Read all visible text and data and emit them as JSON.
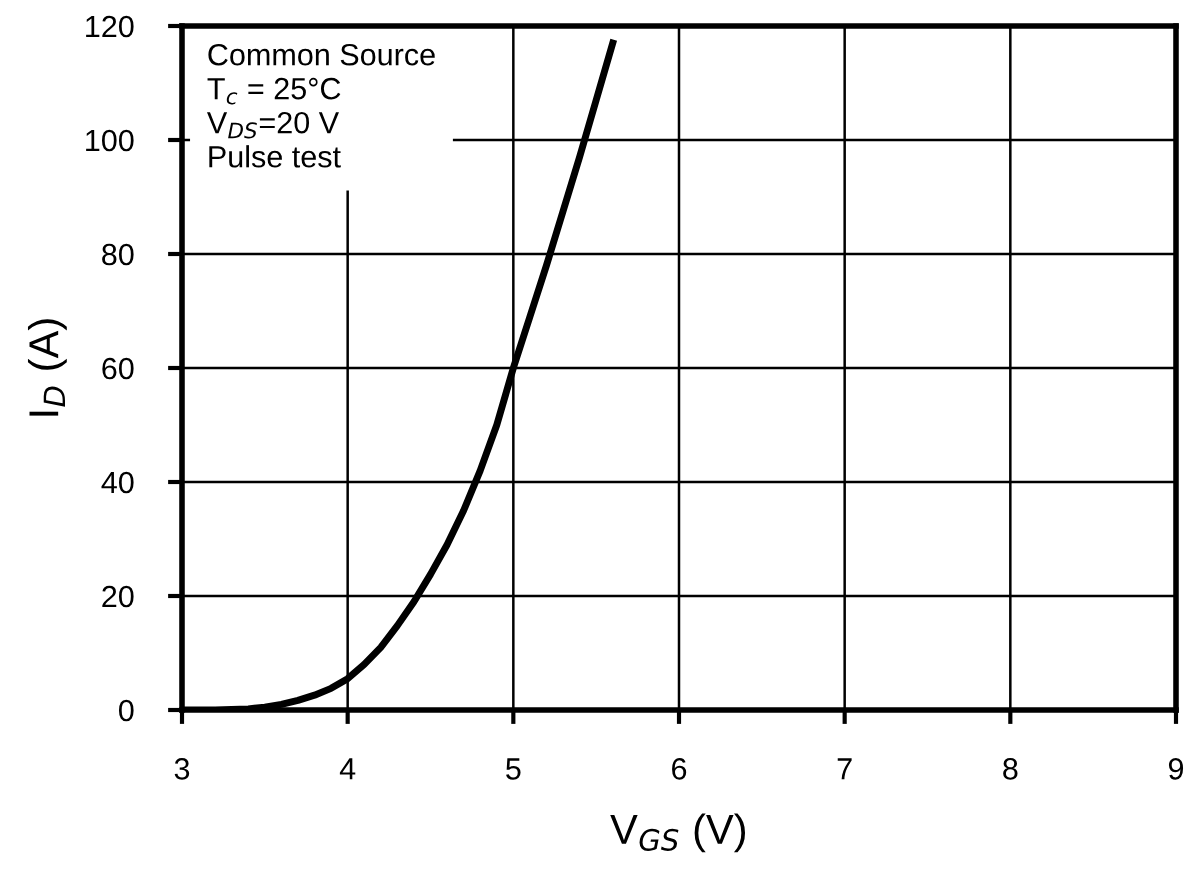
{
  "chart_data": {
    "type": "line",
    "xlabel": "V$_{GS}$ (V)",
    "ylabel": "I$_{D}$ (A)",
    "x": [
      3,
      3.2,
      3.4,
      3.5,
      3.6,
      3.7,
      3.8,
      3.9,
      4,
      4.1,
      4.2,
      4.3,
      4.4,
      4.5,
      4.6,
      4.7,
      4.8,
      4.9,
      5,
      5.1,
      5.2,
      5.3,
      5.4,
      5.5,
      5.6
    ],
    "series": [
      {
        "color": "#000000",
        "values": [
          0,
          0,
          0.2,
          0.5,
          1,
          1.7,
          2.6,
          3.8,
          5.5,
          8,
          11,
          14.8,
          19,
          23.8,
          29,
          35,
          42,
          50,
          60,
          69,
          78,
          87.5,
          97,
          107,
          117
        ]
      }
    ],
    "annotations": [
      "Common Source\nT$_{c}$ = 25°C\nV$_{DS}$=20 V\nPulse test"
    ],
    "xlim": [
      3,
      9
    ],
    "xticks": [
      3,
      4,
      5,
      6,
      7,
      8,
      9
    ],
    "ylim": [
      0,
      120
    ],
    "yticks": [
      0,
      20,
      40,
      60,
      80,
      100,
      120
    ],
    "grid": true,
    "legend": false,
    "marker": "none",
    "line_style": "solid"
  }
}
